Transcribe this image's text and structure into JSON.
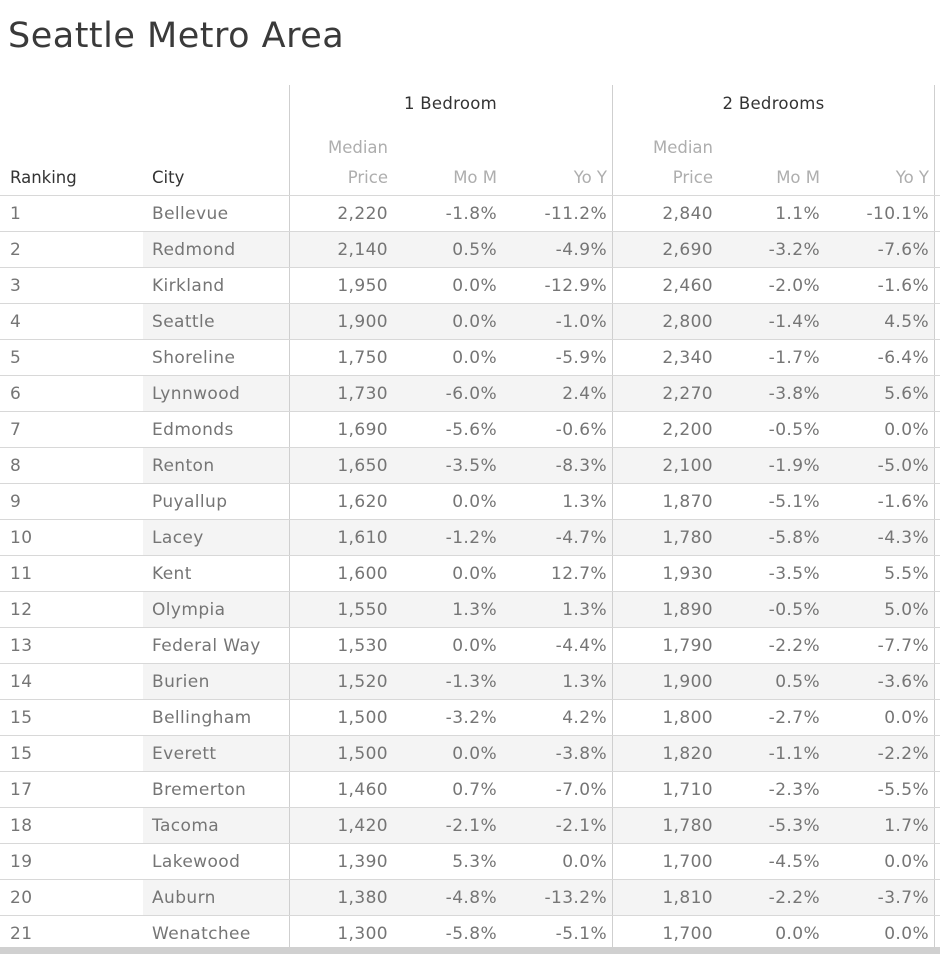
{
  "title": "Seattle Metro Area",
  "colors": {
    "title_text": "#3a3a3a",
    "header_dark_text": "#333333",
    "header_light_text": "#aeaeae",
    "data_text": "#757575",
    "row_band": "#f4f4f4",
    "row_separator": "#d8d8d8",
    "column_divider": "#cfcfcf",
    "scrollbar": "#d0d0d0"
  },
  "table": {
    "corner_headers": {
      "ranking": "Ranking",
      "city": "City"
    },
    "group_headers": [
      "1 Bedroom",
      "2 Bedrooms"
    ],
    "sub_headers": {
      "median_line1": "Median",
      "median_line2": "Price",
      "mom": "Mo M",
      "yoy": "Yo Y"
    }
  },
  "chart_data": {
    "type": "table",
    "title": "Seattle Metro Area",
    "column_groups": [
      "",
      "",
      "1 Bedroom",
      "1 Bedroom",
      "1 Bedroom",
      "2 Bedrooms",
      "2 Bedrooms",
      "2 Bedrooms"
    ],
    "columns": [
      "Ranking",
      "City",
      "Median Price",
      "Mo M",
      "Yo Y",
      "Median Price",
      "Mo M",
      "Yo Y"
    ],
    "rows": [
      [
        "1",
        "Bellevue",
        "2,220",
        "-1.8%",
        "-11.2%",
        "2,840",
        "1.1%",
        "-10.1%"
      ],
      [
        "2",
        "Redmond",
        "2,140",
        "0.5%",
        "-4.9%",
        "2,690",
        "-3.2%",
        "-7.6%"
      ],
      [
        "3",
        "Kirkland",
        "1,950",
        "0.0%",
        "-12.9%",
        "2,460",
        "-2.0%",
        "-1.6%"
      ],
      [
        "4",
        "Seattle",
        "1,900",
        "0.0%",
        "-1.0%",
        "2,800",
        "-1.4%",
        "4.5%"
      ],
      [
        "5",
        "Shoreline",
        "1,750",
        "0.0%",
        "-5.9%",
        "2,340",
        "-1.7%",
        "-6.4%"
      ],
      [
        "6",
        "Lynnwood",
        "1,730",
        "-6.0%",
        "2.4%",
        "2,270",
        "-3.8%",
        "5.6%"
      ],
      [
        "7",
        "Edmonds",
        "1,690",
        "-5.6%",
        "-0.6%",
        "2,200",
        "-0.5%",
        "0.0%"
      ],
      [
        "8",
        "Renton",
        "1,650",
        "-3.5%",
        "-8.3%",
        "2,100",
        "-1.9%",
        "-5.0%"
      ],
      [
        "9",
        "Puyallup",
        "1,620",
        "0.0%",
        "1.3%",
        "1,870",
        "-5.1%",
        "-1.6%"
      ],
      [
        "10",
        "Lacey",
        "1,610",
        "-1.2%",
        "-4.7%",
        "1,780",
        "-5.8%",
        "-4.3%"
      ],
      [
        "11",
        "Kent",
        "1,600",
        "0.0%",
        "12.7%",
        "1,930",
        "-3.5%",
        "5.5%"
      ],
      [
        "12",
        "Olympia",
        "1,550",
        "1.3%",
        "1.3%",
        "1,890",
        "-0.5%",
        "5.0%"
      ],
      [
        "13",
        "Federal Way",
        "1,530",
        "0.0%",
        "-4.4%",
        "1,790",
        "-2.2%",
        "-7.7%"
      ],
      [
        "14",
        "Burien",
        "1,520",
        "-1.3%",
        "1.3%",
        "1,900",
        "0.5%",
        "-3.6%"
      ],
      [
        "15",
        "Bellingham",
        "1,500",
        "-3.2%",
        "4.2%",
        "1,800",
        "-2.7%",
        "0.0%"
      ],
      [
        "15",
        "Everett",
        "1,500",
        "0.0%",
        "-3.8%",
        "1,820",
        "-1.1%",
        "-2.2%"
      ],
      [
        "17",
        "Bremerton",
        "1,460",
        "0.7%",
        "-7.0%",
        "1,710",
        "-2.3%",
        "-5.5%"
      ],
      [
        "18",
        "Tacoma",
        "1,420",
        "-2.1%",
        "-2.1%",
        "1,780",
        "-5.3%",
        "1.7%"
      ],
      [
        "19",
        "Lakewood",
        "1,390",
        "5.3%",
        "0.0%",
        "1,700",
        "-4.5%",
        "0.0%"
      ],
      [
        "20",
        "Auburn",
        "1,380",
        "-4.8%",
        "-13.2%",
        "1,810",
        "-2.2%",
        "-3.7%"
      ],
      [
        "21",
        "Wenatchee",
        "1,300",
        "-5.8%",
        "-5.1%",
        "1,700",
        "0.0%",
        "0.0%"
      ]
    ]
  }
}
